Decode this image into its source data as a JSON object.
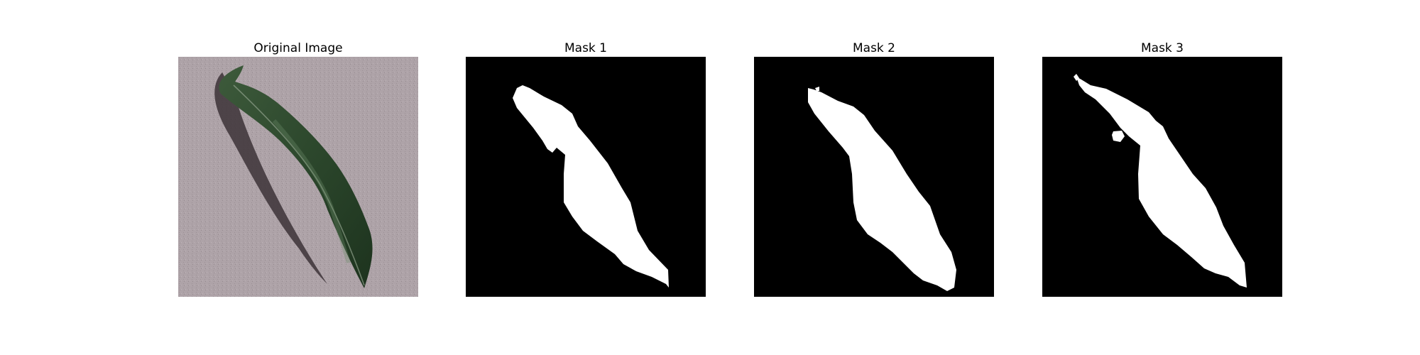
{
  "figure": {
    "panels": [
      {
        "title": "Original Image",
        "kind": "photo"
      },
      {
        "title": "Mask 1",
        "kind": "mask"
      },
      {
        "title": "Mask 2",
        "kind": "mask"
      },
      {
        "title": "Mask 3",
        "kind": "mask"
      }
    ]
  },
  "colors": {
    "background": "#ffffff",
    "mask_background": "#000000",
    "mask_foreground": "#ffffff",
    "photo_surface": "#ada2a7",
    "leaf_dark": "#1f3520",
    "leaf_light": "#3f5e3d",
    "leaf_shadow": "#3a3135"
  }
}
